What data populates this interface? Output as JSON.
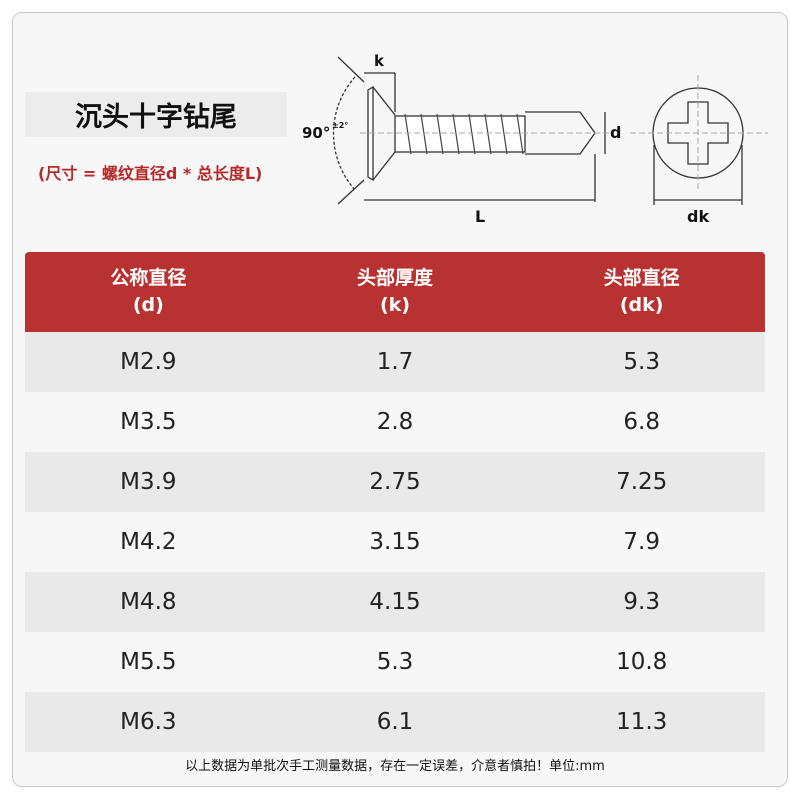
{
  "title": "沉头十字钻尾",
  "subtitle": "(尺寸 = 螺纹直径d * 总长度L)",
  "diagram": {
    "k": "k",
    "d": "d",
    "L": "L",
    "dk": "dk",
    "angle": "90°",
    "tolerance": "±2°"
  },
  "table": {
    "headers": [
      {
        "name": "公称直径",
        "sym": "(d)"
      },
      {
        "name": "头部厚度",
        "sym": "(k)"
      },
      {
        "name": "头部直径",
        "sym": "(dk)"
      }
    ],
    "rows": [
      [
        "M2.9",
        "1.7",
        "5.3"
      ],
      [
        "M3.5",
        "2.8",
        "6.8"
      ],
      [
        "M3.9",
        "2.75",
        "7.25"
      ],
      [
        "M4.2",
        "3.15",
        "7.9"
      ],
      [
        "M4.8",
        "4.15",
        "9.3"
      ],
      [
        "M5.5",
        "5.3",
        "10.8"
      ],
      [
        "M6.3",
        "6.1",
        "11.3"
      ]
    ]
  },
  "note": "以上数据为单批次手工测量数据，存在一定误差，介意者慎拍！单位:mm",
  "colors": {
    "header": "#b83232",
    "subtitle": "#b52a2a"
  }
}
